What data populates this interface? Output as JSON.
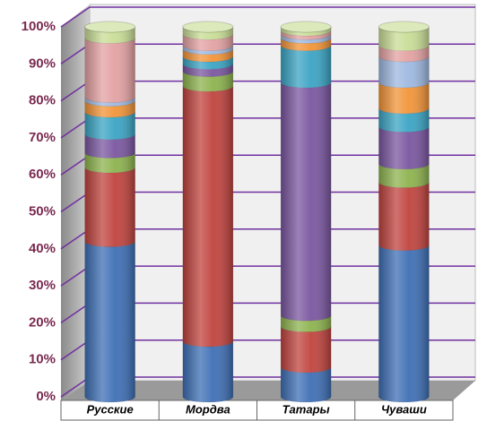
{
  "chart_data": {
    "type": "bar",
    "stacked": true,
    "categories": [
      "Русские",
      "Мордва",
      "Татары",
      "Чуваши"
    ],
    "series": [
      {
        "color": "#3e6fb5",
        "values": [
          42,
          15,
          8,
          41
        ]
      },
      {
        "color": "#c0433e",
        "values": [
          20,
          69,
          11,
          17
        ]
      },
      {
        "color": "#8db34e",
        "values": [
          4,
          4,
          3,
          5
        ]
      },
      {
        "color": "#7a56a0",
        "values": [
          5,
          2,
          63,
          10
        ]
      },
      {
        "color": "#3aa4c4",
        "values": [
          6,
          2,
          10,
          5
        ]
      },
      {
        "color": "#f29438",
        "values": [
          3,
          2,
          2,
          7
        ]
      },
      {
        "color": "#9db8e0",
        "values": [
          1,
          1,
          1,
          7
        ]
      },
      {
        "color": "#e3a1a2",
        "values": [
          16,
          3,
          1,
          3
        ]
      },
      {
        "color": "#c9dd96",
        "values": [
          3,
          2,
          1,
          5
        ]
      }
    ],
    "ylim": [
      0,
      100
    ],
    "yticks": [
      {
        "value": 0,
        "label": "0%"
      },
      {
        "value": 10,
        "label": "10%"
      },
      {
        "value": 20,
        "label": "20%"
      },
      {
        "value": 30,
        "label": "30%"
      },
      {
        "value": 40,
        "label": "40%"
      },
      {
        "value": 50,
        "label": "50%"
      },
      {
        "value": 60,
        "label": "60%"
      },
      {
        "value": 70,
        "label": "70%"
      },
      {
        "value": 80,
        "label": "80%"
      },
      {
        "value": 90,
        "label": "90%"
      },
      {
        "value": 100,
        "label": "100%"
      }
    ],
    "grid": true
  }
}
